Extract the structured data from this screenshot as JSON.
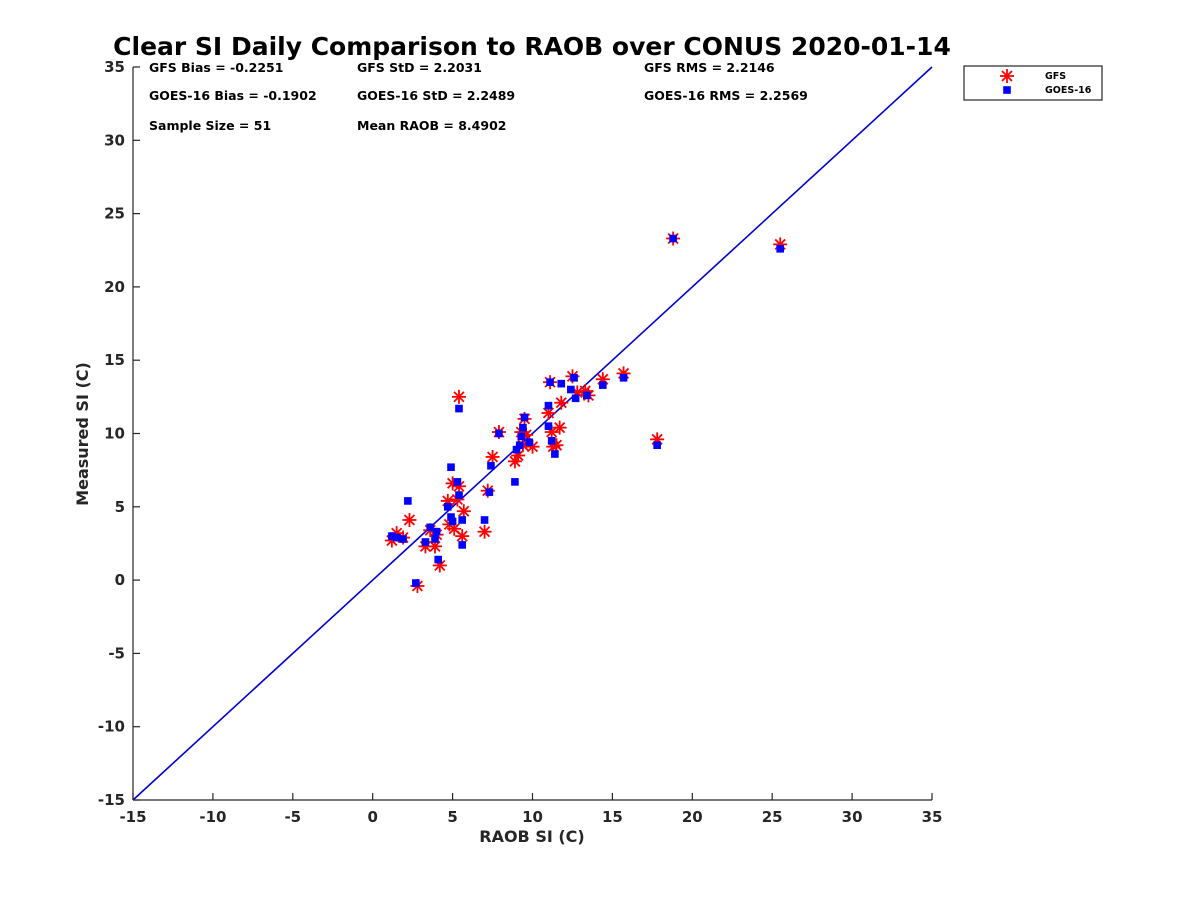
{
  "chart_data": {
    "type": "scatter",
    "title": "Clear SI Daily Comparison to RAOB over CONUS 2020-01-14",
    "xlabel": "RAOB SI (C)",
    "ylabel": "Measured SI (C)",
    "xlim": [
      -15,
      35
    ],
    "ylim": [
      -15,
      35
    ],
    "xticks": [
      "-15",
      "-10",
      "-5",
      "0",
      "5",
      "10",
      "15",
      "20",
      "25",
      "30",
      "35"
    ],
    "yticks": [
      "-15",
      "-10",
      "-5",
      "0",
      "5",
      "10",
      "15",
      "20",
      "25",
      "30",
      "35"
    ],
    "grid": false,
    "legend_position": "outside top-right",
    "stats": {
      "gfs_bias": "GFS Bias = -0.2251",
      "gfs_std": "GFS StD = 2.2031",
      "gfs_rms": "GFS RMS = 2.2146",
      "goes_bias": "GOES-16 Bias = -0.1902",
      "goes_std": "GOES-16 StD = 2.2489",
      "goes_rms": "GOES-16 RMS = 2.2569",
      "sample_size": "Sample Size = 51",
      "mean_raob": "Mean RAOB = 8.4902"
    },
    "reference_line": {
      "x": [
        -15,
        35
      ],
      "y": [
        -15,
        35
      ],
      "color": "#0000d6"
    },
    "series": [
      {
        "name": "GFS",
        "marker": "asterisk",
        "color": "#ff0000",
        "points": [
          [
            1.2,
            2.7
          ],
          [
            1.5,
            3.2
          ],
          [
            1.9,
            2.9
          ],
          [
            2.3,
            4.1
          ],
          [
            2.8,
            -0.4
          ],
          [
            3.3,
            2.3
          ],
          [
            3.6,
            3.4
          ],
          [
            3.9,
            2.3
          ],
          [
            4.0,
            3.1
          ],
          [
            4.2,
            1.0
          ],
          [
            4.7,
            5.4
          ],
          [
            4.8,
            3.8
          ],
          [
            5.0,
            6.6
          ],
          [
            5.1,
            3.5
          ],
          [
            5.3,
            5.5
          ],
          [
            5.4,
            12.5
          ],
          [
            5.4,
            6.4
          ],
          [
            5.6,
            3.0
          ],
          [
            5.7,
            4.7
          ],
          [
            7.0,
            3.3
          ],
          [
            7.2,
            6.1
          ],
          [
            7.5,
            8.4
          ],
          [
            7.9,
            10.1
          ],
          [
            8.9,
            8.1
          ],
          [
            9.1,
            8.5
          ],
          [
            9.3,
            10.1
          ],
          [
            9.4,
            9.2
          ],
          [
            9.5,
            11.0
          ],
          [
            9.6,
            9.9
          ],
          [
            10.0,
            9.1
          ],
          [
            11.0,
            11.4
          ],
          [
            11.1,
            13.5
          ],
          [
            11.2,
            10.1
          ],
          [
            11.3,
            9.1
          ],
          [
            11.5,
            9.2
          ],
          [
            11.7,
            10.4
          ],
          [
            11.8,
            12.1
          ],
          [
            12.5,
            13.9
          ],
          [
            12.8,
            12.8
          ],
          [
            13.3,
            12.9
          ],
          [
            13.5,
            12.6
          ],
          [
            14.4,
            13.7
          ],
          [
            15.7,
            14.1
          ],
          [
            17.8,
            9.6
          ],
          [
            18.8,
            23.3
          ],
          [
            25.5,
            22.9
          ]
        ]
      },
      {
        "name": "GOES-16",
        "marker": "square",
        "color": "#0000ff",
        "points": [
          [
            1.2,
            3.0
          ],
          [
            1.5,
            2.9
          ],
          [
            1.9,
            2.8
          ],
          [
            2.2,
            5.4
          ],
          [
            2.7,
            -0.2
          ],
          [
            3.3,
            2.6
          ],
          [
            3.6,
            3.6
          ],
          [
            3.9,
            2.8
          ],
          [
            4.0,
            3.3
          ],
          [
            4.1,
            1.4
          ],
          [
            4.7,
            5.0
          ],
          [
            4.9,
            7.7
          ],
          [
            4.9,
            4.3
          ],
          [
            5.0,
            4.0
          ],
          [
            5.3,
            6.7
          ],
          [
            5.4,
            11.7
          ],
          [
            5.4,
            5.8
          ],
          [
            5.6,
            2.4
          ],
          [
            5.6,
            4.1
          ],
          [
            7.0,
            4.1
          ],
          [
            7.3,
            6.0
          ],
          [
            7.4,
            7.8
          ],
          [
            7.9,
            10.0
          ],
          [
            8.9,
            6.7
          ],
          [
            9.0,
            8.9
          ],
          [
            9.2,
            9.2
          ],
          [
            9.3,
            9.8
          ],
          [
            9.4,
            10.4
          ],
          [
            9.5,
            11.1
          ],
          [
            9.8,
            9.4
          ],
          [
            11.0,
            10.5
          ],
          [
            11.0,
            11.9
          ],
          [
            11.1,
            13.5
          ],
          [
            11.2,
            9.5
          ],
          [
            11.4,
            8.6
          ],
          [
            11.8,
            13.4
          ],
          [
            12.4,
            13.0
          ],
          [
            12.6,
            13.8
          ],
          [
            12.7,
            12.4
          ],
          [
            13.4,
            12.6
          ],
          [
            14.4,
            13.3
          ],
          [
            15.7,
            13.8
          ],
          [
            17.8,
            9.2
          ],
          [
            18.8,
            23.3
          ],
          [
            25.5,
            22.6
          ]
        ]
      }
    ]
  }
}
